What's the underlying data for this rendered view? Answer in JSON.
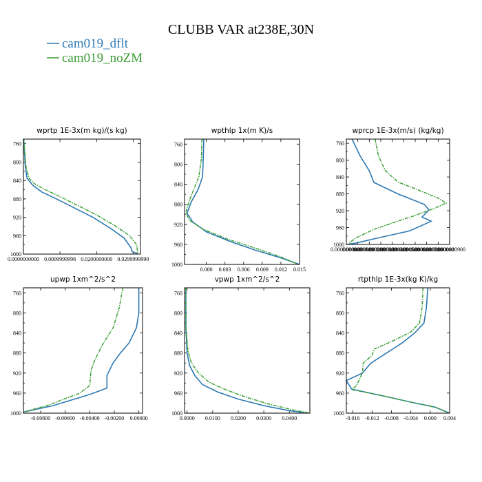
{
  "chart_title": "CLUBB VAR at238E,30N",
  "legend": [
    {
      "name": "cam019_dflt",
      "color": "#2b78b4"
    },
    {
      "name": "cam019_noZM",
      "color": "#3a9e34"
    }
  ],
  "chart_data": [
    {
      "type": "line",
      "title": "wprtp  1E-3x(m kg)/(s kg)",
      "ylim": [
        1000,
        750
      ],
      "yticks": [
        "760",
        "800",
        "840",
        "880",
        "920",
        "960",
        "1000"
      ],
      "yticks_values": [
        760,
        800,
        840,
        880,
        920,
        960,
        1000
      ],
      "xlim": [
        0,
        0.032
      ],
      "xticks": [
        "0.0000000000",
        "0.0099999998",
        "0.0200000000",
        "0.0299999990"
      ],
      "xticks_values": [
        0,
        0.0099999998,
        0.02,
        0.029999999
      ],
      "series": [
        {
          "name": "cam019_dflt",
          "points": [
            [
              0.0001,
              750
            ],
            [
              0.0003,
              780
            ],
            [
              0.0005,
              810
            ],
            [
              0.001,
              835
            ],
            [
              0.0025,
              850
            ],
            [
              0.005,
              865
            ],
            [
              0.009,
              880
            ],
            [
              0.014,
              900
            ],
            [
              0.019,
              920
            ],
            [
              0.024,
              945
            ],
            [
              0.0275,
              965
            ],
            [
              0.0293,
              985
            ],
            [
              0.0298,
              995
            ],
            [
              0.0312,
              999
            ]
          ]
        },
        {
          "name": "cam019_noZM",
          "points": [
            [
              0.0001,
              750
            ],
            [
              0.0004,
              780
            ],
            [
              0.0007,
              810
            ],
            [
              0.0015,
              835
            ],
            [
              0.003,
              847
            ],
            [
              0.006,
              860
            ],
            [
              0.01,
              875
            ],
            [
              0.015,
              895
            ],
            [
              0.02,
              915
            ],
            [
              0.025,
              938
            ],
            [
              0.029,
              960
            ],
            [
              0.031,
              980
            ],
            [
              0.0312,
              999
            ]
          ]
        }
      ]
    },
    {
      "type": "line",
      "title": "wpthlp  1x(m K)/s",
      "ylim": [
        1000,
        750
      ],
      "yticks": [
        "760",
        "800",
        "840",
        "880",
        "920",
        "960",
        "1000"
      ],
      "yticks_values": [
        760,
        800,
        840,
        880,
        920,
        960,
        1000
      ],
      "xlim": [
        -0.0035,
        0.015
      ],
      "xticks": [
        "0.000",
        "0.003",
        "0.006",
        "0.009",
        "0.012",
        "0.015"
      ],
      "xticks_values": [
        0,
        0.003,
        0.006,
        0.009,
        0.012,
        0.015
      ],
      "series": [
        {
          "name": "cam019_dflt",
          "points": [
            [
              -0.0004,
              750
            ],
            [
              -0.0005,
              790
            ],
            [
              -0.0006,
              825
            ],
            [
              -0.0013,
              850
            ],
            [
              -0.0024,
              875
            ],
            [
              -0.0031,
              898
            ],
            [
              -0.0022,
              915
            ],
            [
              0.0,
              935
            ],
            [
              0.004,
              955
            ],
            [
              0.008,
              972
            ],
            [
              0.012,
              987
            ],
            [
              0.015,
              1000
            ]
          ]
        },
        {
          "name": "cam019_noZM",
          "points": [
            [
              -0.0007,
              750
            ],
            [
              -0.0008,
              790
            ],
            [
              -0.0012,
              825
            ],
            [
              -0.002,
              850
            ],
            [
              -0.0028,
              875
            ],
            [
              -0.0033,
              897
            ],
            [
              -0.0027,
              912
            ],
            [
              -0.0005,
              930
            ],
            [
              0.0035,
              950
            ],
            [
              0.008,
              968
            ],
            [
              0.0118,
              984
            ],
            [
              0.0148,
              1000
            ]
          ]
        }
      ]
    },
    {
      "type": "line",
      "title": "wprcp  1E-3x(m/s) (kg/kg)",
      "ylim": [
        1000,
        750
      ],
      "yticks": [
        "760",
        "800",
        "840",
        "880",
        "920",
        "960",
        "1000"
      ],
      "yticks_values": [
        760,
        800,
        840,
        880,
        920,
        960,
        1000
      ],
      "xlim": [
        0,
        9e-07
      ],
      "xticks": [
        "0.0000000000",
        "0.0000000100",
        "0.0000000200",
        "0.0000000300",
        "0.0000000400",
        "0.0000000500",
        "0.0000000600",
        "0.0000000700",
        "0.0000000800",
        "0.0000000900"
      ],
      "xticks_values": [
        0,
        1e-07,
        2e-07,
        3e-07,
        4e-07,
        5e-07,
        6e-07,
        7e-07,
        8e-07,
        9e-07
      ],
      "series": [
        {
          "name": "cam019_dflt",
          "points": [
            [
              5e-08,
              750
            ],
            [
              1.2e-07,
              790
            ],
            [
              2e-07,
              825
            ],
            [
              2.4e-07,
              853
            ],
            [
              4.5e-07,
              880
            ],
            [
              6.8e-07,
              905
            ],
            [
              7.2e-07,
              918
            ],
            [
              6.6e-07,
              935
            ],
            [
              7.4e-07,
              945
            ],
            [
              5.5e-07,
              968
            ],
            [
              3e-07,
              983
            ],
            [
              8e-08,
              997
            ],
            [
              0.0,
              1000
            ]
          ]
        },
        {
          "name": "cam019_noZM",
          "points": [
            [
              2.5e-07,
              750
            ],
            [
              2.8e-07,
              790
            ],
            [
              3.4e-07,
              825
            ],
            [
              4.5e-07,
              852
            ],
            [
              6.2e-07,
              870
            ],
            [
              8e-07,
              890
            ],
            [
              8.7e-07,
              902
            ],
            [
              7.6e-07,
              915
            ],
            [
              5.8e-07,
              933
            ],
            [
              5e-07,
              940
            ],
            [
              2.5e-07,
              963
            ],
            [
              8e-08,
              985
            ],
            [
              2e-08,
              998
            ]
          ]
        }
      ]
    },
    {
      "type": "line",
      "title": "upwp   1xm^2/s^2",
      "ylim": [
        1000,
        750
      ],
      "yticks": [
        "760",
        "800",
        "840",
        "880",
        "920",
        "960",
        "1000"
      ],
      "yticks_values": [
        760,
        800,
        840,
        880,
        920,
        960,
        1000
      ],
      "xlim": [
        -0.0094,
        0.0003
      ],
      "xticks": [
        "-0.00800",
        "-0.00600",
        "-0.00400",
        "-0.00200",
        "0.00000"
      ],
      "xticks_values": [
        -0.008,
        -0.006,
        -0.004,
        -0.002,
        0
      ],
      "series": [
        {
          "name": "cam019_dflt",
          "points": [
            [
              0.0,
              750
            ],
            [
              0.0,
              800
            ],
            [
              -0.0002,
              830
            ],
            [
              -0.0008,
              860
            ],
            [
              -0.0015,
              880
            ],
            [
              -0.0021,
              900
            ],
            [
              -0.0026,
              925
            ],
            [
              -0.0026,
              950
            ],
            [
              -0.0039,
              962
            ],
            [
              -0.007,
              985
            ],
            [
              -0.0094,
              998
            ]
          ]
        },
        {
          "name": "cam019_noZM",
          "points": [
            [
              -0.0013,
              750
            ],
            [
              -0.0016,
              790
            ],
            [
              -0.0021,
              830
            ],
            [
              -0.003,
              865
            ],
            [
              -0.0036,
              895
            ],
            [
              -0.0039,
              915
            ],
            [
              -0.004,
              945
            ],
            [
              -0.0048,
              960
            ],
            [
              -0.0075,
              985
            ],
            [
              -0.0094,
              998
            ]
          ]
        }
      ]
    },
    {
      "type": "line",
      "title": "vpwp   1xm^2/s^2",
      "ylim": [
        1000,
        750
      ],
      "yticks": [
        "760",
        "800",
        "840",
        "880",
        "920",
        "960",
        "1000"
      ],
      "yticks_values": [
        760,
        800,
        840,
        880,
        920,
        960,
        1000
      ],
      "xlim": [
        -0.001,
        0.048
      ],
      "xticks": [
        "0.0000",
        "0.0100",
        "0.0200",
        "0.0300",
        "0.0400"
      ],
      "xticks_values": [
        0,
        0.01,
        0.02,
        0.03,
        0.04
      ],
      "series": [
        {
          "name": "cam019_dflt",
          "points": [
            [
              -0.0005,
              750
            ],
            [
              -0.0005,
              830
            ],
            [
              0.0,
              880
            ],
            [
              0.001,
              905
            ],
            [
              0.003,
              925
            ],
            [
              0.006,
              943
            ],
            [
              0.012,
              958
            ],
            [
              0.02,
              972
            ],
            [
              0.03,
              985
            ],
            [
              0.04,
              995
            ],
            [
              0.047,
              1000
            ]
          ]
        },
        {
          "name": "cam019_noZM",
          "points": [
            [
              -0.0005,
              750
            ],
            [
              -0.0004,
              830
            ],
            [
              0.0003,
              875
            ],
            [
              0.0017,
              900
            ],
            [
              0.0045,
              920
            ],
            [
              0.0085,
              938
            ],
            [
              0.015,
              953
            ],
            [
              0.023,
              968
            ],
            [
              0.032,
              982
            ],
            [
              0.041,
              993
            ],
            [
              0.048,
              1000
            ]
          ]
        }
      ]
    },
    {
      "type": "line",
      "title": "rtpthlp   1E-3x(kg K)/kg",
      "ylim": [
        1000,
        750
      ],
      "yticks": [
        "760",
        "800",
        "840",
        "880",
        "920",
        "960",
        "1000"
      ],
      "yticks_values": [
        760,
        800,
        840,
        880,
        920,
        960,
        1000
      ],
      "xlim": [
        -0.0173,
        0.004
      ],
      "xticks": [
        "-0.016",
        "-0.012",
        "-0.008",
        "-0.004",
        "0.000",
        "0.004"
      ],
      "xticks_values": [
        -0.016,
        -0.012,
        -0.008,
        -0.004,
        0,
        0.004
      ],
      "series": [
        {
          "name": "cam019_dflt",
          "points": [
            [
              -0.0005,
              750
            ],
            [
              -0.0008,
              790
            ],
            [
              -0.0013,
              820
            ],
            [
              -0.0032,
              840
            ],
            [
              -0.0058,
              860
            ],
            [
              -0.009,
              880
            ],
            [
              -0.0122,
              900
            ],
            [
              -0.014,
              920
            ],
            [
              -0.0173,
              935
            ],
            [
              -0.0162,
              952
            ],
            [
              -0.01,
              965
            ],
            [
              -0.004,
              978
            ],
            [
              0.001,
              988
            ],
            [
              0.004,
              1000
            ]
          ]
        },
        {
          "name": "cam019_noZM",
          "points": [
            [
              -0.0015,
              750
            ],
            [
              -0.0017,
              790
            ],
            [
              -0.0022,
              820
            ],
            [
              -0.004,
              838
            ],
            [
              -0.0075,
              855
            ],
            [
              -0.0115,
              872
            ],
            [
              -0.012,
              885
            ],
            [
              -0.0138,
              900
            ],
            [
              -0.014,
              920
            ],
            [
              -0.0152,
              945
            ],
            [
              -0.0162,
              953
            ],
            [
              -0.01,
              965
            ],
            [
              -0.004,
              978
            ],
            [
              0.001,
              988
            ],
            [
              0.004,
              1000
            ]
          ]
        }
      ]
    }
  ]
}
